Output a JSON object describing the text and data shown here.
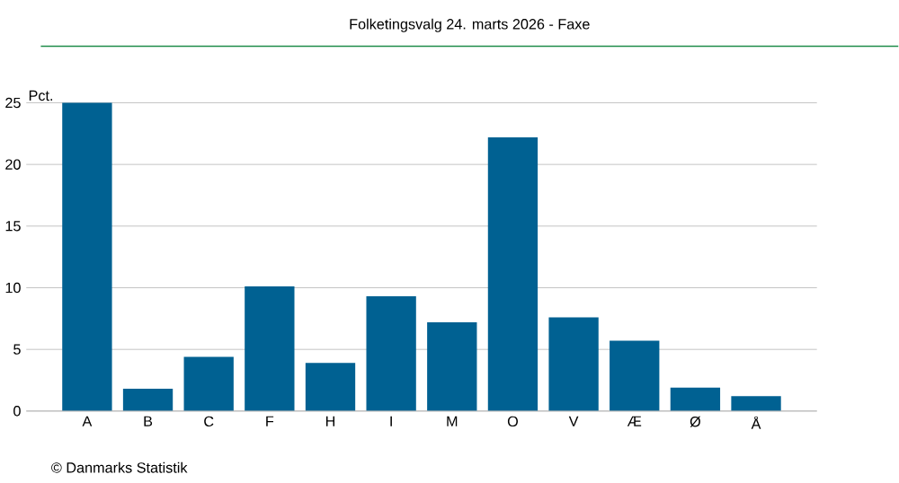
{
  "chart_data": {
    "type": "bar",
    "title": "Folketingsvalg 24. marts 2026 - Faxe",
    "ylabel": "Pct.",
    "categories": [
      "A",
      "B",
      "C",
      "F",
      "H",
      "I",
      "M",
      "O",
      "V",
      "Æ",
      "Ø",
      "Å"
    ],
    "values": [
      25.0,
      1.8,
      4.4,
      10.1,
      3.9,
      9.3,
      7.2,
      22.2,
      7.6,
      5.7,
      1.9,
      1.2
    ],
    "color": "#006192",
    "ylim": [
      0,
      25
    ],
    "yticks": [
      0,
      5,
      10,
      15,
      20,
      25
    ],
    "grid": "y",
    "annotations": [
      "© Danmarks Statistik"
    ]
  }
}
